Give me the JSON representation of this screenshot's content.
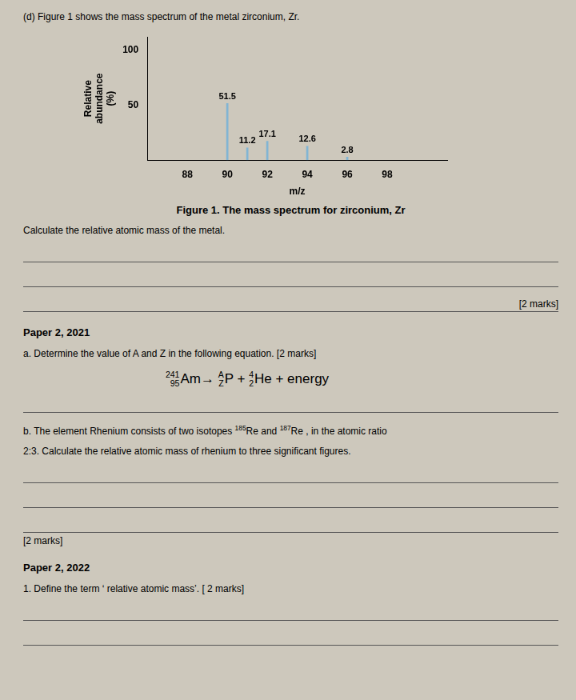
{
  "background": "#cdc8bc",
  "header_text": "(d)    Figure 1 shows the mass spectrum of the metal zirconium, Zr.",
  "chart_data": {
    "type": "bar",
    "x": [
      90,
      91,
      92,
      94,
      96
    ],
    "values": [
      51.5,
      11.2,
      17.1,
      12.6,
      2.8
    ],
    "data_labels": true,
    "x_label": "m/z",
    "y_label": "Relative\nabundance\n(%)",
    "xlim": [
      86.0,
      101.0
    ],
    "xticks": [
      88,
      90,
      92,
      94,
      96,
      98
    ],
    "ylim": [
      0,
      112
    ],
    "yticks": [
      50,
      100
    ],
    "grid": false
  },
  "figure_caption": "Figure 1. The mass spectrum for zirconium, Zr",
  "instruction_text": "Calculate the relative atomic mass of the metal.",
  "marks_1": "[2 marks]",
  "section_2021_header": "Paper 2, 2021",
  "section_2021_a_text": "a.  Determine the value of A and Z in the following equation. [2 marks]",
  "equation": [
    [
      "241",
      "95",
      "Am"
    ],
    "→ ",
    [
      "A",
      "Z",
      "P"
    ],
    " + ",
    [
      "4",
      "2",
      "He"
    ],
    " + energy"
  ],
  "section_2021_b_line1": [
    "b.  The element Rhenium consists of two isotopes ",
    [
      "185",
      "Re"
    ],
    " and ",
    [
      "187",
      "Re"
    ],
    " , in the atomic ratio"
  ],
  "section_2021_b_line2": "2:3. Calculate the relative atomic mass of rhenium to three significant figures.",
  "marks_2": "[2 marks]",
  "section_2022_header": "Paper 2, 2022",
  "section_2022_q1": "1.  Define the term ‘ relative atomic mass’. [ 2 marks]"
}
